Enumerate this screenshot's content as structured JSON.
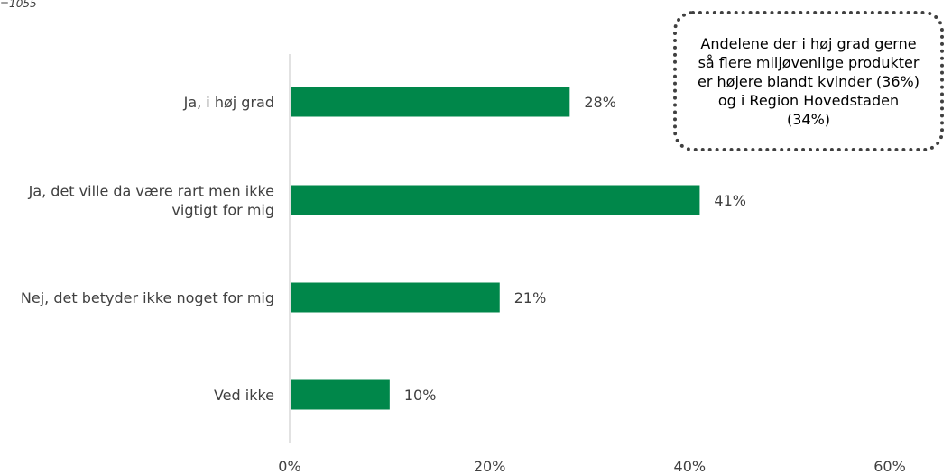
{
  "header": {
    "note": "=1055"
  },
  "callout": {
    "text": "Andelene der i høj grad gerne så flere miljøvenlige produkter er højere blandt kvinder (36%) og i Region Hovedstaden (34%)"
  },
  "colors": {
    "bar": "#00874A",
    "axis": "#D9D9D9",
    "text": "#404040"
  },
  "chart_data": {
    "type": "bar",
    "orientation": "horizontal",
    "categories": [
      "Ja, i høj grad",
      "Ja, det ville da være rart men ikke vigtigt for mig",
      "Nej, det betyder ikke noget for mig",
      "Ved ikke"
    ],
    "values": [
      28,
      41,
      21,
      10
    ],
    "value_labels": [
      "28%",
      "41%",
      "21%",
      "10%"
    ],
    "xlim": [
      0,
      60
    ],
    "xticks": [
      0,
      20,
      40,
      60
    ],
    "xtick_labels": [
      "0%",
      "20%",
      "40%",
      "60%"
    ],
    "grid": false,
    "legend": "none"
  }
}
